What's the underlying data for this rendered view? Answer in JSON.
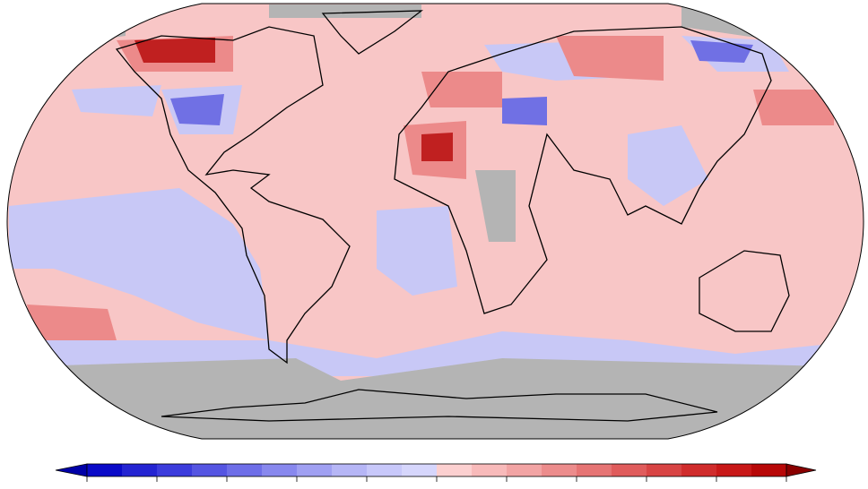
{
  "map": {
    "colorbar": {
      "low_arrow": "#0000a8",
      "high_arrow": "#8a0000",
      "colors": [
        "#0a0ac8",
        "#2424d2",
        "#3c3cdc",
        "#5555e2",
        "#6e6ee8",
        "#8888ee",
        "#a0a0f2",
        "#b6b6f6",
        "#c8c8fa",
        "#d6d6fc",
        "#fcd0d0",
        "#f8baba",
        "#f2a4a4",
        "#ec8c8c",
        "#e67474",
        "#e05c5c",
        "#d84444",
        "#d02c2c",
        "#c81818",
        "#b80808"
      ]
    }
  }
}
